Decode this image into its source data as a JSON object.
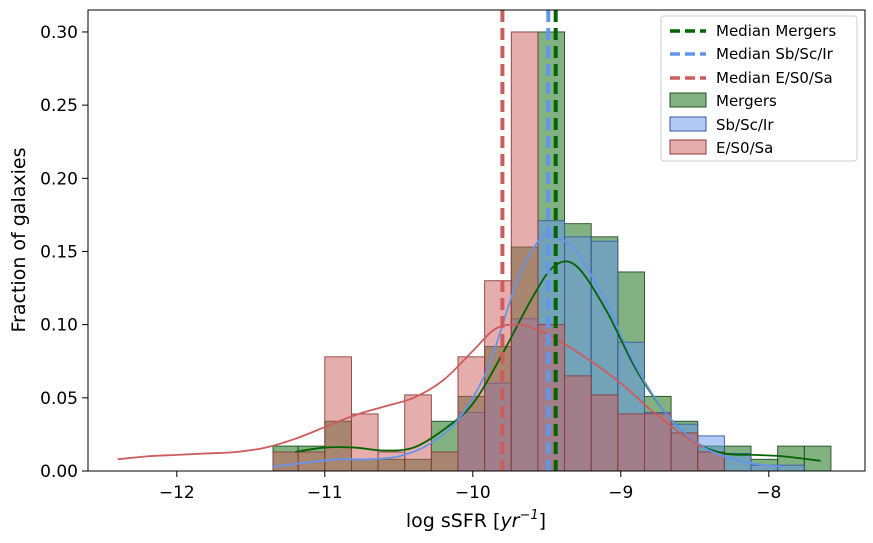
{
  "chart_data": {
    "type": "histogram",
    "xlabel_prefix": "log sSFR [",
    "xlabel_unit": "yr",
    "xlabel_exp": "−1",
    "xlabel_suffix": "]",
    "ylabel": "Fraction of galaxies",
    "xlim": [
      -12.6,
      -7.35
    ],
    "ylim": [
      0,
      0.315
    ],
    "xticks": [
      -12,
      -11,
      -10,
      -9,
      -8
    ],
    "xtick_labels": [
      "−12",
      "−11",
      "−10",
      "−9",
      "−8"
    ],
    "yticks": [
      0,
      0.05,
      0.1,
      0.15,
      0.2,
      0.25,
      0.3
    ],
    "ytick_labels": [
      "0.00",
      "0.05",
      "0.10",
      "0.15",
      "0.20",
      "0.25",
      "0.30"
    ],
    "legend_position": "top-right",
    "medians": [
      {
        "name": "Median Mergers",
        "x": -9.44,
        "color": "#006400"
      },
      {
        "name": "Median Sb/Sc/Ir",
        "x": -9.49,
        "color": "#6495ED"
      },
      {
        "name": "Median E/S0/Sa",
        "x": -9.8,
        "color": "#CD5C5C"
      }
    ],
    "series": [
      {
        "name": "Mergers",
        "face": "#2e7d2e",
        "edge": "#1f4f1f",
        "alpha": 0.6,
        "bins": [
          [
            -11.35,
            -11.18,
            0.017
          ],
          [
            -11.18,
            -11.0,
            0.017
          ],
          [
            -11.0,
            -10.82,
            0.034
          ],
          [
            -10.82,
            -10.64,
            0.008
          ],
          [
            -10.64,
            -10.46,
            0.008
          ],
          [
            -10.46,
            -10.28,
            0.008
          ],
          [
            -10.28,
            -10.1,
            0.034
          ],
          [
            -10.1,
            -9.92,
            0.051
          ],
          [
            -9.92,
            -9.74,
            0.085
          ],
          [
            -9.74,
            -9.56,
            0.153
          ],
          [
            -9.56,
            -9.38,
            0.3
          ],
          [
            -9.38,
            -9.2,
            0.169
          ],
          [
            -9.2,
            -9.02,
            0.16
          ],
          [
            -9.02,
            -8.84,
            0.136
          ],
          [
            -8.84,
            -8.66,
            0.051
          ],
          [
            -8.66,
            -8.48,
            0.034
          ],
          [
            -8.48,
            -8.3,
            0.017
          ],
          [
            -8.3,
            -8.12,
            0.017
          ],
          [
            -8.12,
            -7.94,
            0.008
          ],
          [
            -7.94,
            -7.76,
            0.017
          ],
          [
            -7.76,
            -7.58,
            0.017
          ]
        ],
        "kde": [
          [
            -11.2,
            0.013
          ],
          [
            -11.0,
            0.016
          ],
          [
            -10.8,
            0.016
          ],
          [
            -10.6,
            0.014
          ],
          [
            -10.4,
            0.016
          ],
          [
            -10.2,
            0.028
          ],
          [
            -10.0,
            0.046
          ],
          [
            -9.8,
            0.08
          ],
          [
            -9.6,
            0.118
          ],
          [
            -9.45,
            0.14
          ],
          [
            -9.3,
            0.14
          ],
          [
            -9.1,
            0.11
          ],
          [
            -8.9,
            0.07
          ],
          [
            -8.7,
            0.04
          ],
          [
            -8.5,
            0.02
          ],
          [
            -8.3,
            0.012
          ],
          [
            -8.1,
            0.011
          ],
          [
            -7.9,
            0.01
          ],
          [
            -7.65,
            0.007
          ]
        ]
      },
      {
        "name": "Sb/Sc/Ir",
        "face": "#6495ED",
        "edge": "#3a5a9a",
        "alpha": 0.5,
        "bins": [
          [
            -10.1,
            -9.92,
            0.04
          ],
          [
            -9.92,
            -9.74,
            0.06
          ],
          [
            -9.74,
            -9.56,
            0.104
          ],
          [
            -9.56,
            -9.38,
            0.171
          ],
          [
            -9.38,
            -9.2,
            0.16
          ],
          [
            -9.2,
            -9.02,
            0.157
          ],
          [
            -9.02,
            -8.84,
            0.088
          ],
          [
            -8.84,
            -8.66,
            0.04
          ],
          [
            -8.66,
            -8.48,
            0.032
          ],
          [
            -8.48,
            -8.3,
            0.024
          ],
          [
            -8.3,
            -8.12,
            0.012
          ],
          [
            -8.12,
            -7.94,
            0.004
          ],
          [
            -7.94,
            -7.76,
            0.004
          ]
        ],
        "kde": [
          [
            -11.35,
            0.003
          ],
          [
            -11.1,
            0.006
          ],
          [
            -10.9,
            0.008
          ],
          [
            -10.7,
            0.008
          ],
          [
            -10.5,
            0.01
          ],
          [
            -10.3,
            0.018
          ],
          [
            -10.1,
            0.035
          ],
          [
            -9.9,
            0.07
          ],
          [
            -9.7,
            0.13
          ],
          [
            -9.55,
            0.158
          ],
          [
            -9.45,
            0.16
          ],
          [
            -9.3,
            0.15
          ],
          [
            -9.1,
            0.115
          ],
          [
            -8.9,
            0.072
          ],
          [
            -8.7,
            0.04
          ],
          [
            -8.5,
            0.02
          ],
          [
            -8.3,
            0.01
          ],
          [
            -8.1,
            0.005
          ],
          [
            -7.9,
            0.003
          ]
        ]
      },
      {
        "name": "E/S0/Sa",
        "face": "#CD5C5C",
        "edge": "#8a3c3c",
        "alpha": 0.5,
        "bins": [
          [
            -11.35,
            -11.18,
            0.013
          ],
          [
            -11.18,
            -11.0,
            0.013
          ],
          [
            -11.0,
            -10.82,
            0.078
          ],
          [
            -10.82,
            -10.64,
            0.039
          ],
          [
            -10.64,
            -10.46,
            0.013
          ],
          [
            -10.46,
            -10.28,
            0.052
          ],
          [
            -10.28,
            -10.1,
            0.013
          ],
          [
            -10.1,
            -9.92,
            0.078
          ],
          [
            -9.92,
            -9.74,
            0.13
          ],
          [
            -9.74,
            -9.56,
            0.3
          ],
          [
            -9.56,
            -9.38,
            0.1
          ],
          [
            -9.38,
            -9.2,
            0.065
          ],
          [
            -9.2,
            -9.02,
            0.052
          ],
          [
            -9.02,
            -8.84,
            0.039
          ],
          [
            -8.84,
            -8.66,
            0.039
          ],
          [
            -8.66,
            -8.48,
            0.026
          ],
          [
            -8.48,
            -8.3,
            0.013
          ]
        ],
        "kde": [
          [
            -12.4,
            0.008
          ],
          [
            -12.2,
            0.01
          ],
          [
            -12.0,
            0.011
          ],
          [
            -11.8,
            0.012
          ],
          [
            -11.6,
            0.013
          ],
          [
            -11.4,
            0.016
          ],
          [
            -11.2,
            0.022
          ],
          [
            -11.0,
            0.03
          ],
          [
            -10.8,
            0.038
          ],
          [
            -10.6,
            0.044
          ],
          [
            -10.4,
            0.05
          ],
          [
            -10.2,
            0.062
          ],
          [
            -10.0,
            0.082
          ],
          [
            -9.85,
            0.097
          ],
          [
            -9.7,
            0.1
          ],
          [
            -9.55,
            0.096
          ],
          [
            -9.4,
            0.088
          ],
          [
            -9.2,
            0.075
          ],
          [
            -9.0,
            0.06
          ],
          [
            -8.8,
            0.042
          ],
          [
            -8.6,
            0.026
          ],
          [
            -8.45,
            0.016
          ]
        ]
      }
    ]
  }
}
